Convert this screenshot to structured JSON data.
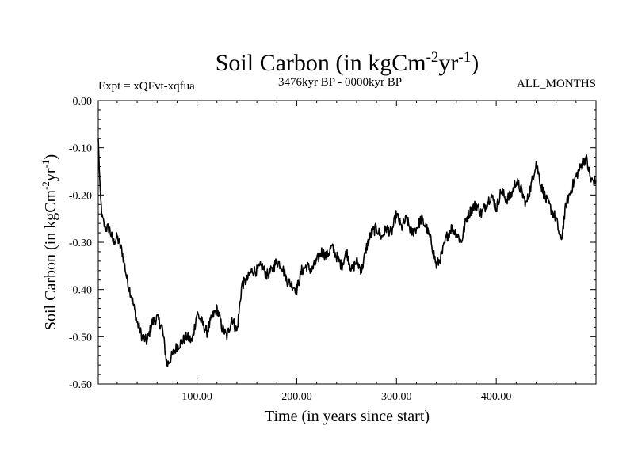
{
  "chart_data": {
    "type": "line",
    "title": {
      "prefix": "Soil Carbon (in kgCm",
      "sup1": "-2",
      "mid": "yr",
      "sup2": "-1",
      "suffix": ")"
    },
    "subtitle_left": "Expt = xQFvt-xqfua",
    "subtitle_center": "3476kyr BP - 0000kyr BP",
    "subtitle_right": "ALL_MONTHS",
    "xlabel": "Time (in years since start)",
    "ylabel": {
      "prefix": "Soil Carbon (in kgCm",
      "sup1": "-2",
      "mid": "yr",
      "sup2": "-1",
      "suffix": ")"
    },
    "xlim": [
      1,
      500
    ],
    "ylim": [
      -0.6,
      0.0
    ],
    "x_ticks": [
      {
        "value": 100,
        "label": "100.00"
      },
      {
        "value": 200,
        "label": "200.00"
      },
      {
        "value": 300,
        "label": "300.00"
      },
      {
        "value": 400,
        "label": "400.00"
      }
    ],
    "y_ticks": [
      {
        "value": 0.0,
        "label": "0.00"
      },
      {
        "value": -0.1,
        "label": "-0.10"
      },
      {
        "value": -0.2,
        "label": "-0.20"
      },
      {
        "value": -0.3,
        "label": "-0.30"
      },
      {
        "value": -0.4,
        "label": "-0.40"
      },
      {
        "value": -0.5,
        "label": "-0.50"
      },
      {
        "value": -0.6,
        "label": "-0.60"
      }
    ],
    "series": [
      {
        "name": "Soil Carbon",
        "color": "#000000",
        "x": [
          1,
          3,
          5,
          8,
          12,
          16,
          20,
          25,
          30,
          35,
          40,
          45,
          50,
          55,
          60,
          65,
          70,
          75,
          80,
          85,
          90,
          95,
          100,
          105,
          110,
          115,
          120,
          125,
          130,
          135,
          140,
          145,
          150,
          155,
          160,
          165,
          170,
          175,
          180,
          185,
          190,
          195,
          200,
          205,
          210,
          215,
          220,
          225,
          230,
          235,
          240,
          245,
          250,
          255,
          260,
          265,
          270,
          275,
          280,
          285,
          290,
          295,
          300,
          305,
          310,
          315,
          320,
          325,
          330,
          335,
          340,
          345,
          350,
          355,
          360,
          365,
          370,
          375,
          380,
          385,
          390,
          395,
          400,
          405,
          410,
          415,
          420,
          425,
          430,
          435,
          440,
          445,
          450,
          455,
          460,
          465,
          470,
          475,
          480,
          485,
          490,
          495,
          500
        ],
        "values": [
          -0.08,
          -0.2,
          -0.25,
          -0.27,
          -0.27,
          -0.3,
          -0.29,
          -0.32,
          -0.38,
          -0.42,
          -0.47,
          -0.5,
          -0.51,
          -0.47,
          -0.46,
          -0.48,
          -0.56,
          -0.54,
          -0.52,
          -0.51,
          -0.5,
          -0.51,
          -0.45,
          -0.47,
          -0.49,
          -0.46,
          -0.44,
          -0.48,
          -0.5,
          -0.46,
          -0.49,
          -0.39,
          -0.38,
          -0.36,
          -0.36,
          -0.35,
          -0.37,
          -0.36,
          -0.34,
          -0.35,
          -0.38,
          -0.39,
          -0.4,
          -0.36,
          -0.35,
          -0.36,
          -0.34,
          -0.32,
          -0.33,
          -0.31,
          -0.33,
          -0.35,
          -0.32,
          -0.36,
          -0.34,
          -0.36,
          -0.31,
          -0.28,
          -0.27,
          -0.29,
          -0.27,
          -0.28,
          -0.24,
          -0.27,
          -0.25,
          -0.28,
          -0.27,
          -0.25,
          -0.27,
          -0.3,
          -0.35,
          -0.33,
          -0.29,
          -0.27,
          -0.28,
          -0.3,
          -0.25,
          -0.23,
          -0.22,
          -0.24,
          -0.22,
          -0.2,
          -0.23,
          -0.19,
          -0.21,
          -0.2,
          -0.17,
          -0.19,
          -0.22,
          -0.18,
          -0.13,
          -0.18,
          -0.21,
          -0.23,
          -0.25,
          -0.3,
          -0.22,
          -0.19,
          -0.16,
          -0.14,
          -0.12,
          -0.17,
          -0.17
        ]
      }
    ]
  }
}
